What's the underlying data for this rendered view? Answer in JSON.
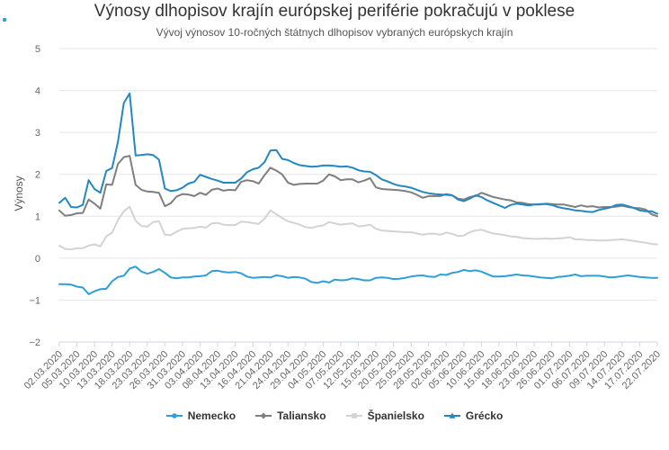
{
  "chart_data": {
    "type": "line",
    "title": "Výnosy dlhopisov krajín európskej periférie pokračujú v poklese",
    "subtitle": "Vývoj výnosov 10-ročných štátnych dlhopisov vybraných európskych krajín",
    "xlabel": "",
    "ylabel": "Výnosy",
    "ylim": [
      -2,
      5
    ],
    "yticks": [
      -2,
      -1,
      0,
      1,
      2,
      3,
      4,
      5
    ],
    "grid": true,
    "legend_position": "bottom",
    "x": [
      "02.03.2020",
      "03.03.2020",
      "04.03.2020",
      "05.03.2020",
      "06.03.2020",
      "09.03.2020",
      "10.03.2020",
      "11.03.2020",
      "12.03.2020",
      "13.03.2020",
      "16.03.2020",
      "17.03.2020",
      "18.03.2020",
      "19.03.2020",
      "20.03.2020",
      "23.03.2020",
      "24.03.2020",
      "25.03.2020",
      "26.03.2020",
      "27.03.2020",
      "30.03.2020",
      "31.03.2020",
      "01.04.2020",
      "02.04.2020",
      "03.04.2020",
      "06.04.2020",
      "07.04.2020",
      "08.04.2020",
      "09.04.2020",
      "10.04.2020",
      "13.04.2020",
      "14.04.2020",
      "15.04.2020",
      "16.04.2020",
      "17.04.2020",
      "20.04.2020",
      "21.04.2020",
      "22.04.2020",
      "23.04.2020",
      "24.04.2020",
      "27.04.2020",
      "28.04.2020",
      "29.04.2020",
      "30.04.2020",
      "01.05.2020",
      "04.05.2020",
      "05.05.2020",
      "06.05.2020",
      "07.05.2020",
      "08.05.2020",
      "11.05.2020",
      "12.05.2020",
      "13.05.2020",
      "14.05.2020",
      "15.05.2020",
      "18.05.2020",
      "19.05.2020",
      "20.05.2020",
      "21.05.2020",
      "22.05.2020",
      "25.05.2020",
      "26.05.2020",
      "27.05.2020",
      "28.05.2020",
      "29.05.2020",
      "01.06.2020",
      "02.06.2020",
      "03.06.2020",
      "04.06.2020",
      "05.06.2020",
      "08.06.2020",
      "09.06.2020",
      "10.06.2020",
      "11.06.2020",
      "12.06.2020",
      "15.06.2020",
      "16.06.2020",
      "17.06.2020",
      "18.06.2020",
      "19.06.2020",
      "22.06.2020",
      "23.06.2020",
      "24.06.2020",
      "25.06.2020",
      "26.06.2020",
      "29.06.2020",
      "30.06.2020",
      "01.07.2020",
      "02.07.2020",
      "03.07.2020",
      "06.07.2020",
      "07.07.2020",
      "08.07.2020",
      "09.07.2020",
      "10.07.2020",
      "13.07.2020",
      "14.07.2020",
      "15.07.2020",
      "16.07.2020",
      "17.07.2020",
      "20.07.2020",
      "21.07.2020",
      "22.07.2020"
    ],
    "xticks_shown": [
      "02.03.2020",
      "05.03.2020",
      "10.03.2020",
      "13.03.2020",
      "18.03.2020",
      "23.03.2020",
      "26.03.2020",
      "31.03.2020",
      "03.04.2020",
      "08.04.2020",
      "13.04.2020",
      "16.04.2020",
      "21.04.2020",
      "24.04.2020",
      "29.04.2020",
      "04.05.2020",
      "07.05.2020",
      "12.05.2020",
      "15.05.2020",
      "20.05.2020",
      "25.05.2020",
      "28.05.2020",
      "02.06.2020",
      "05.06.2020",
      "10.06.2020",
      "15.06.2020",
      "18.06.2020",
      "23.06.2020",
      "26.06.2020",
      "01.07.2020",
      "06.07.2020",
      "09.07.2020",
      "14.07.2020",
      "17.07.2020",
      "22.07.2020"
    ],
    "series": [
      {
        "name": "Nemecko",
        "color": "#2e9fd8",
        "marker": "circle",
        "values": [
          -0.62,
          -0.62,
          -0.63,
          -0.68,
          -0.7,
          -0.86,
          -0.79,
          -0.74,
          -0.73,
          -0.55,
          -0.45,
          -0.42,
          -0.25,
          -0.2,
          -0.32,
          -0.37,
          -0.33,
          -0.26,
          -0.35,
          -0.46,
          -0.48,
          -0.46,
          -0.46,
          -0.44,
          -0.43,
          -0.41,
          -0.31,
          -0.3,
          -0.33,
          -0.34,
          -0.33,
          -0.36,
          -0.44,
          -0.47,
          -0.46,
          -0.45,
          -0.46,
          -0.41,
          -0.43,
          -0.47,
          -0.45,
          -0.46,
          -0.49,
          -0.57,
          -0.59,
          -0.55,
          -0.58,
          -0.51,
          -0.53,
          -0.52,
          -0.48,
          -0.5,
          -0.53,
          -0.53,
          -0.47,
          -0.46,
          -0.47,
          -0.5,
          -0.49,
          -0.47,
          -0.44,
          -0.42,
          -0.41,
          -0.44,
          -0.45,
          -0.39,
          -0.4,
          -0.35,
          -0.33,
          -0.28,
          -0.31,
          -0.29,
          -0.32,
          -0.38,
          -0.44,
          -0.44,
          -0.43,
          -0.41,
          -0.39,
          -0.41,
          -0.42,
          -0.44,
          -0.46,
          -0.47,
          -0.48,
          -0.45,
          -0.44,
          -0.42,
          -0.39,
          -0.43,
          -0.42,
          -0.42,
          -0.42,
          -0.44,
          -0.46,
          -0.45,
          -0.43,
          -0.41,
          -0.43,
          -0.45,
          -0.46,
          -0.47,
          -0.47
        ]
      },
      {
        "name": "Taliansko",
        "color": "#7f7f7f",
        "marker": "diamond",
        "values": [
          1.14,
          1.01,
          1.03,
          1.07,
          1.08,
          1.4,
          1.3,
          1.18,
          1.76,
          1.75,
          2.25,
          2.41,
          2.44,
          1.75,
          1.63,
          1.59,
          1.58,
          1.56,
          1.24,
          1.31,
          1.47,
          1.53,
          1.52,
          1.48,
          1.56,
          1.51,
          1.63,
          1.66,
          1.61,
          1.63,
          1.62,
          1.82,
          1.86,
          1.84,
          1.78,
          1.98,
          2.16,
          2.09,
          2.0,
          1.8,
          1.75,
          1.77,
          1.78,
          1.78,
          1.78,
          1.85,
          2.0,
          1.95,
          1.86,
          1.88,
          1.88,
          1.81,
          1.85,
          1.91,
          1.69,
          1.65,
          1.64,
          1.63,
          1.62,
          1.6,
          1.57,
          1.51,
          1.44,
          1.48,
          1.48,
          1.48,
          1.53,
          1.5,
          1.42,
          1.4,
          1.46,
          1.48,
          1.56,
          1.51,
          1.46,
          1.43,
          1.4,
          1.38,
          1.33,
          1.32,
          1.29,
          1.28,
          1.28,
          1.3,
          1.29,
          1.28,
          1.28,
          1.25,
          1.22,
          1.26,
          1.23,
          1.24,
          1.21,
          1.22,
          1.22,
          1.23,
          1.25,
          1.22,
          1.2,
          1.19,
          1.16,
          1.05,
          1.0
        ]
      },
      {
        "name": "Španielsko",
        "color": "#d3d3d3",
        "marker": "square",
        "values": [
          0.3,
          0.22,
          0.21,
          0.24,
          0.24,
          0.3,
          0.33,
          0.28,
          0.52,
          0.61,
          0.91,
          1.12,
          1.23,
          0.89,
          0.77,
          0.75,
          0.86,
          0.88,
          0.56,
          0.55,
          0.63,
          0.7,
          0.71,
          0.72,
          0.75,
          0.73,
          0.83,
          0.84,
          0.8,
          0.79,
          0.79,
          0.87,
          0.86,
          0.84,
          0.82,
          0.94,
          1.14,
          1.05,
          0.96,
          0.88,
          0.84,
          0.8,
          0.74,
          0.72,
          0.76,
          0.78,
          0.86,
          0.83,
          0.8,
          0.82,
          0.83,
          0.76,
          0.77,
          0.8,
          0.7,
          0.66,
          0.65,
          0.64,
          0.63,
          0.62,
          0.62,
          0.59,
          0.56,
          0.58,
          0.58,
          0.56,
          0.61,
          0.58,
          0.53,
          0.54,
          0.62,
          0.66,
          0.68,
          0.63,
          0.59,
          0.57,
          0.55,
          0.52,
          0.51,
          0.48,
          0.47,
          0.46,
          0.46,
          0.47,
          0.46,
          0.47,
          0.48,
          0.5,
          0.45,
          0.45,
          0.43,
          0.43,
          0.42,
          0.42,
          0.43,
          0.44,
          0.45,
          0.43,
          0.41,
          0.39,
          0.37,
          0.34,
          0.33
        ]
      },
      {
        "name": "Grécko",
        "color": "#2387c0",
        "marker": "triangle",
        "values": [
          1.32,
          1.44,
          1.22,
          1.21,
          1.27,
          1.86,
          1.65,
          1.56,
          2.08,
          2.15,
          2.78,
          3.7,
          3.93,
          2.45,
          2.46,
          2.48,
          2.46,
          2.35,
          1.66,
          1.6,
          1.62,
          1.68,
          1.78,
          1.82,
          1.99,
          1.94,
          1.89,
          1.85,
          1.8,
          1.8,
          1.8,
          1.9,
          2.05,
          2.12,
          2.16,
          2.29,
          2.57,
          2.58,
          2.37,
          2.34,
          2.27,
          2.22,
          2.2,
          2.18,
          2.19,
          2.21,
          2.21,
          2.2,
          2.18,
          2.19,
          2.16,
          2.1,
          2.07,
          2.06,
          1.98,
          1.88,
          1.83,
          1.77,
          1.73,
          1.71,
          1.68,
          1.63,
          1.58,
          1.55,
          1.53,
          1.52,
          1.51,
          1.5,
          1.4,
          1.36,
          1.42,
          1.5,
          1.46,
          1.38,
          1.32,
          1.26,
          1.2,
          1.27,
          1.3,
          1.28,
          1.26,
          1.28,
          1.29,
          1.29,
          1.27,
          1.22,
          1.19,
          1.17,
          1.14,
          1.13,
          1.11,
          1.1,
          1.15,
          1.18,
          1.21,
          1.27,
          1.28,
          1.24,
          1.2,
          1.14,
          1.12,
          1.12,
          1.06
        ]
      }
    ]
  }
}
